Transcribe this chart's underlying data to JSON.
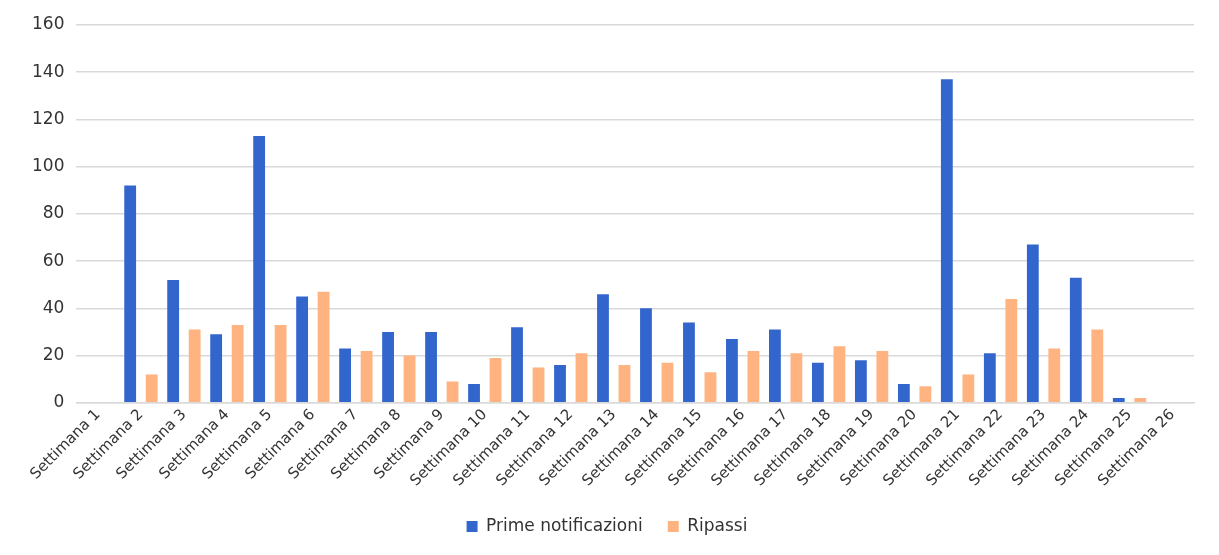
{
  "chart_data": {
    "type": "bar",
    "categories": [
      "Settimana 1",
      "Settimana 2",
      "Settimana 3",
      "Settimana 4",
      "Settimana 5",
      "Settimana 6",
      "Settimana 7",
      "Settimana 8",
      "Settimana 9",
      "Settimana 10",
      "Settimana 11",
      "Settimana 12",
      "Settimana 13",
      "Settimana 14",
      "Settimana 15",
      "Settimana 16",
      "Settimana 17",
      "Settimana 18",
      "Settimana 19",
      "Settimana 20",
      "Settimana 21",
      "Settimana 22",
      "Settimana 23",
      "Settimana 24",
      "Settimana 25",
      "Settimana 26"
    ],
    "series": [
      {
        "name": "Prime notificazioni",
        "color": "#3366cc",
        "values": [
          0,
          92,
          52,
          29,
          113,
          45,
          23,
          30,
          30,
          8,
          32,
          16,
          46,
          40,
          34,
          27,
          31,
          17,
          18,
          8,
          137,
          21,
          67,
          53,
          2,
          0
        ]
      },
      {
        "name": "Ripassi",
        "color": "#ffb380",
        "values": [
          0,
          12,
          31,
          33,
          33,
          47,
          22,
          20,
          9,
          19,
          15,
          21,
          16,
          17,
          13,
          22,
          21,
          24,
          22,
          7,
          12,
          44,
          23,
          31,
          2,
          0
        ]
      }
    ],
    "ylim": [
      0,
      160
    ],
    "yticks": [
      0,
      20,
      40,
      60,
      80,
      100,
      120,
      140,
      160
    ],
    "grid": "y",
    "legend": "bottom"
  }
}
